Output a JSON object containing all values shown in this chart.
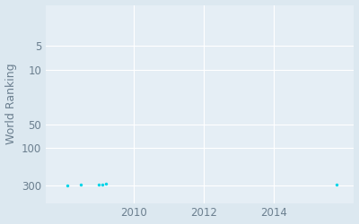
{
  "ylabel": "World Ranking",
  "background_color": "#dce8f0",
  "plot_bg_color": "#e5eef5",
  "marker_color": "#00d4e8",
  "data_points": [
    [
      2008.1,
      298
    ],
    [
      2008.5,
      293
    ],
    [
      2009.0,
      293
    ],
    [
      2009.1,
      289
    ],
    [
      2009.2,
      287
    ],
    [
      2015.8,
      291
    ]
  ],
  "xlim": [
    2007.5,
    2016.3
  ],
  "ylim_log_min": 1.5,
  "ylim_log_max": 500,
  "yticks": [
    5,
    10,
    50,
    100,
    300
  ],
  "xticks": [
    2010,
    2012,
    2014
  ],
  "grid_color": "#ffffff",
  "tick_color": "#6b7f8f",
  "label_color": "#6b7f8f",
  "tick_fontsize": 8.5,
  "label_fontsize": 9
}
